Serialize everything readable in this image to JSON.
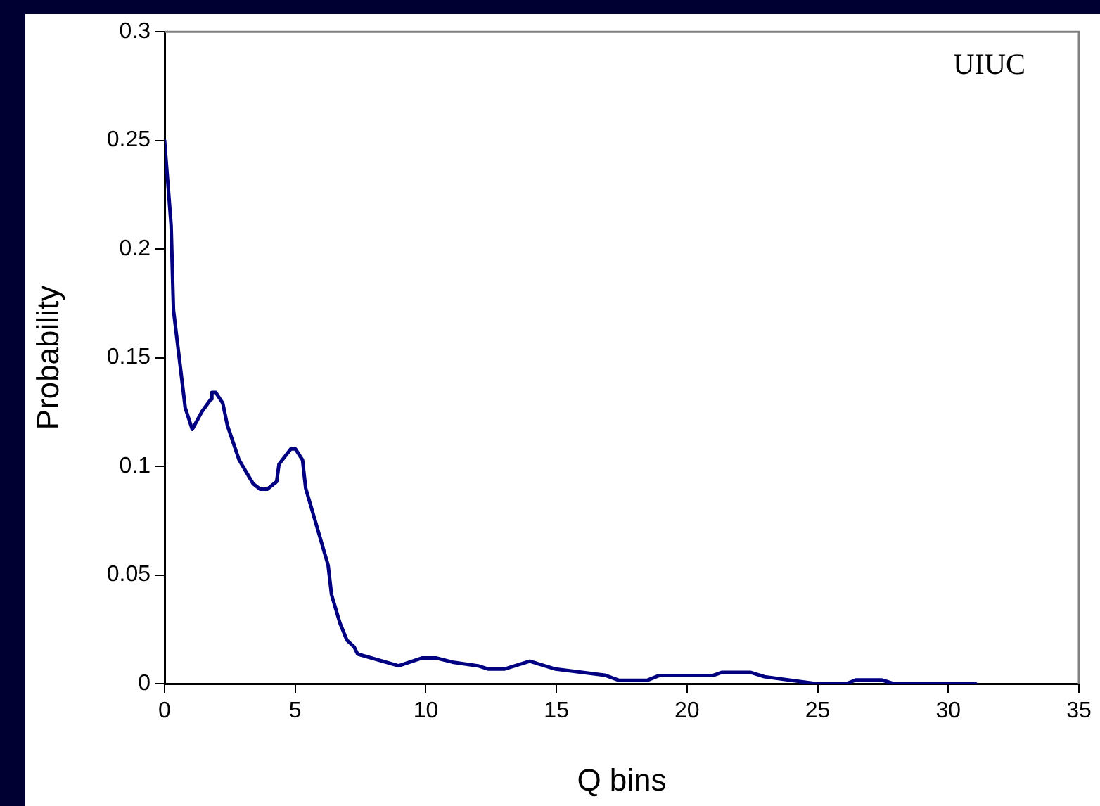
{
  "chart_data": {
    "type": "line",
    "xlabel": "Q bins",
    "ylabel": "Probability",
    "annotations": [
      "UIUC"
    ],
    "x": [
      0,
      0.25,
      0.34,
      0.79,
      1.06,
      1.42,
      1.78,
      1.81,
      1.96,
      2.23,
      2.4,
      2.85,
      3.39,
      3.66,
      3.93,
      4.29,
      4.38,
      4.83,
      5.01,
      5.28,
      5.4,
      6.26,
      6.39,
      6.71,
      6.98,
      7.25,
      7.39,
      8.96,
      9.85,
      10.39,
      11.02,
      12.0,
      12.4,
      13.0,
      13.98,
      14.97,
      16.85,
      17.4,
      18.47,
      18.92,
      20.98,
      21.34,
      22.42,
      22.96,
      24.93,
      26.1,
      26.46,
      27.45,
      27.9,
      31.04
    ],
    "series": [
      {
        "color": "#000080",
        "values": [
          0.25,
          0.211,
          0.172,
          0.127,
          0.117,
          0.125,
          0.131,
          0.134,
          0.134,
          0.129,
          0.119,
          0.103,
          0.092,
          0.0895,
          0.0895,
          0.093,
          0.101,
          0.108,
          0.108,
          0.103,
          0.09,
          0.0545,
          0.041,
          0.028,
          0.02,
          0.017,
          0.0136,
          0.0082,
          0.0118,
          0.0118,
          0.0099,
          0.0082,
          0.0067,
          0.0067,
          0.0103,
          0.0067,
          0.0039,
          0.0015,
          0.0015,
          0.0037,
          0.0037,
          0.0052,
          0.0052,
          0.0032,
          0,
          0,
          0.0017,
          0.0017,
          0,
          0
        ]
      }
    ],
    "xlim": [
      0,
      35
    ],
    "xticks": [
      0,
      5,
      10,
      15,
      20,
      25,
      30,
      35
    ],
    "ylim": [
      0,
      0.3
    ],
    "yticks": [
      0,
      0.05,
      0.1,
      0.15,
      0.2,
      0.25,
      0.3
    ],
    "grid": false,
    "legend": false,
    "marker": "none",
    "line_style": "solid"
  }
}
